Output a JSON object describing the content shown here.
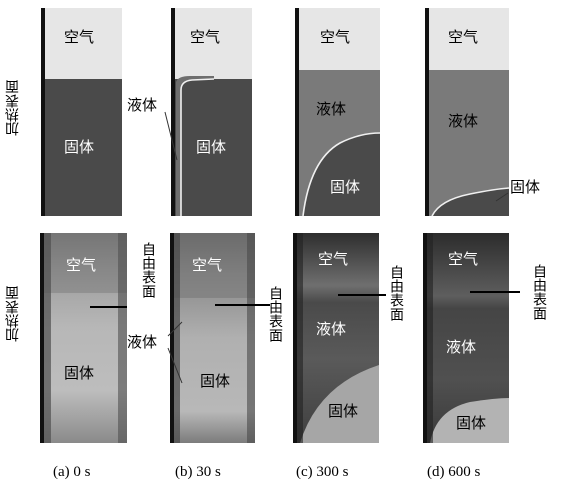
{
  "labels": {
    "air": "空气",
    "solid": "固体",
    "liquid": "液体",
    "heated_surface": "加热表面",
    "free_surface": "自由表面"
  },
  "captions": [
    "(a)  0 s",
    "(b)  30 s",
    "(c)  300 s",
    "(d)  600 s"
  ],
  "colors": {
    "air": "#e6e6e6",
    "solid": "#4a4a4a",
    "liquid": "#7a7a7a",
    "interface": "#f0f0f0",
    "photo_dark": "#3a3a3a",
    "photo_light": "#bdbdbd"
  }
}
